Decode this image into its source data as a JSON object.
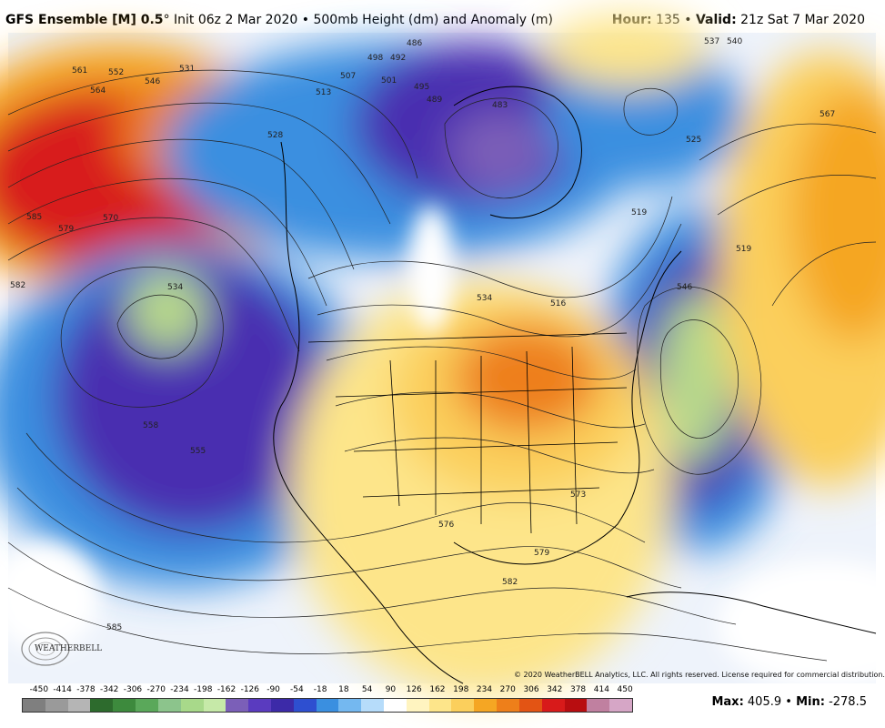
{
  "header": {
    "model": "GFS Ensemble [M] 0.5",
    "degree": "°",
    "init": "Init 06z 2 Mar 2020",
    "bullet": "•",
    "product": "500mb Height (dm) and Anomaly (m)",
    "hour_label": "Hour:",
    "hour_value": "135",
    "valid_label": "Valid:",
    "valid_value": "21z Sat 7 Mar 2020"
  },
  "map": {
    "contour_labels": [
      "486",
      "492",
      "498",
      "501",
      "507",
      "513",
      "528",
      "531",
      "537",
      "540",
      "546",
      "552",
      "561",
      "564",
      "567",
      "570",
      "579",
      "585",
      "582",
      "534",
      "558",
      "555",
      "534",
      "519",
      "525",
      "483",
      "489",
      "495",
      "573",
      "576",
      "579",
      "582",
      "585",
      "516",
      "519",
      "546"
    ],
    "colors": {
      "ridge": "#d81a1a",
      "warm": "#f5a623",
      "mild": "#fde58a",
      "neutral": "#ffffff",
      "cool": "#3a8fe0",
      "cold": "#4a2fb0",
      "deep_cold": "#7b5fb8",
      "low_core": "#b8d98a"
    }
  },
  "copyright": "© 2020 WeatherBELL Analytics, LLC. All rights reserved. License required for commercial distribution.",
  "logo_text": "WEATHERBELL",
  "colorbar": {
    "ticks": [
      "-450",
      "-414",
      "-378",
      "-342",
      "-306",
      "-270",
      "-234",
      "-198",
      "-162",
      "-126",
      "-90",
      "-54",
      "-18",
      "18",
      "54",
      "90",
      "126",
      "162",
      "198",
      "234",
      "270",
      "306",
      "342",
      "378",
      "414",
      "450"
    ],
    "swatches": [
      "#7f7f7f",
      "#9a9a9a",
      "#b5b5b5",
      "#2d6b2d",
      "#3d8a3d",
      "#5aa85a",
      "#8cc48c",
      "#a8d98a",
      "#c6e9a8",
      "#7b5fb8",
      "#5a3bbf",
      "#3c2aa8",
      "#2e4fd0",
      "#3a8fe0",
      "#74b8f0",
      "#b6dcfa",
      "#ffffff",
      "#fff4c0",
      "#fde58a",
      "#fbcf5c",
      "#f5a623",
      "#ee7f1a",
      "#e35414",
      "#d81a1a",
      "#b80d10",
      "#c080a0",
      "#d6a6c6"
    ]
  },
  "stats": {
    "max_label": "Max:",
    "max_value": "405.9",
    "sep": "•",
    "min_label": "Min:",
    "min_value": "-278.5"
  }
}
